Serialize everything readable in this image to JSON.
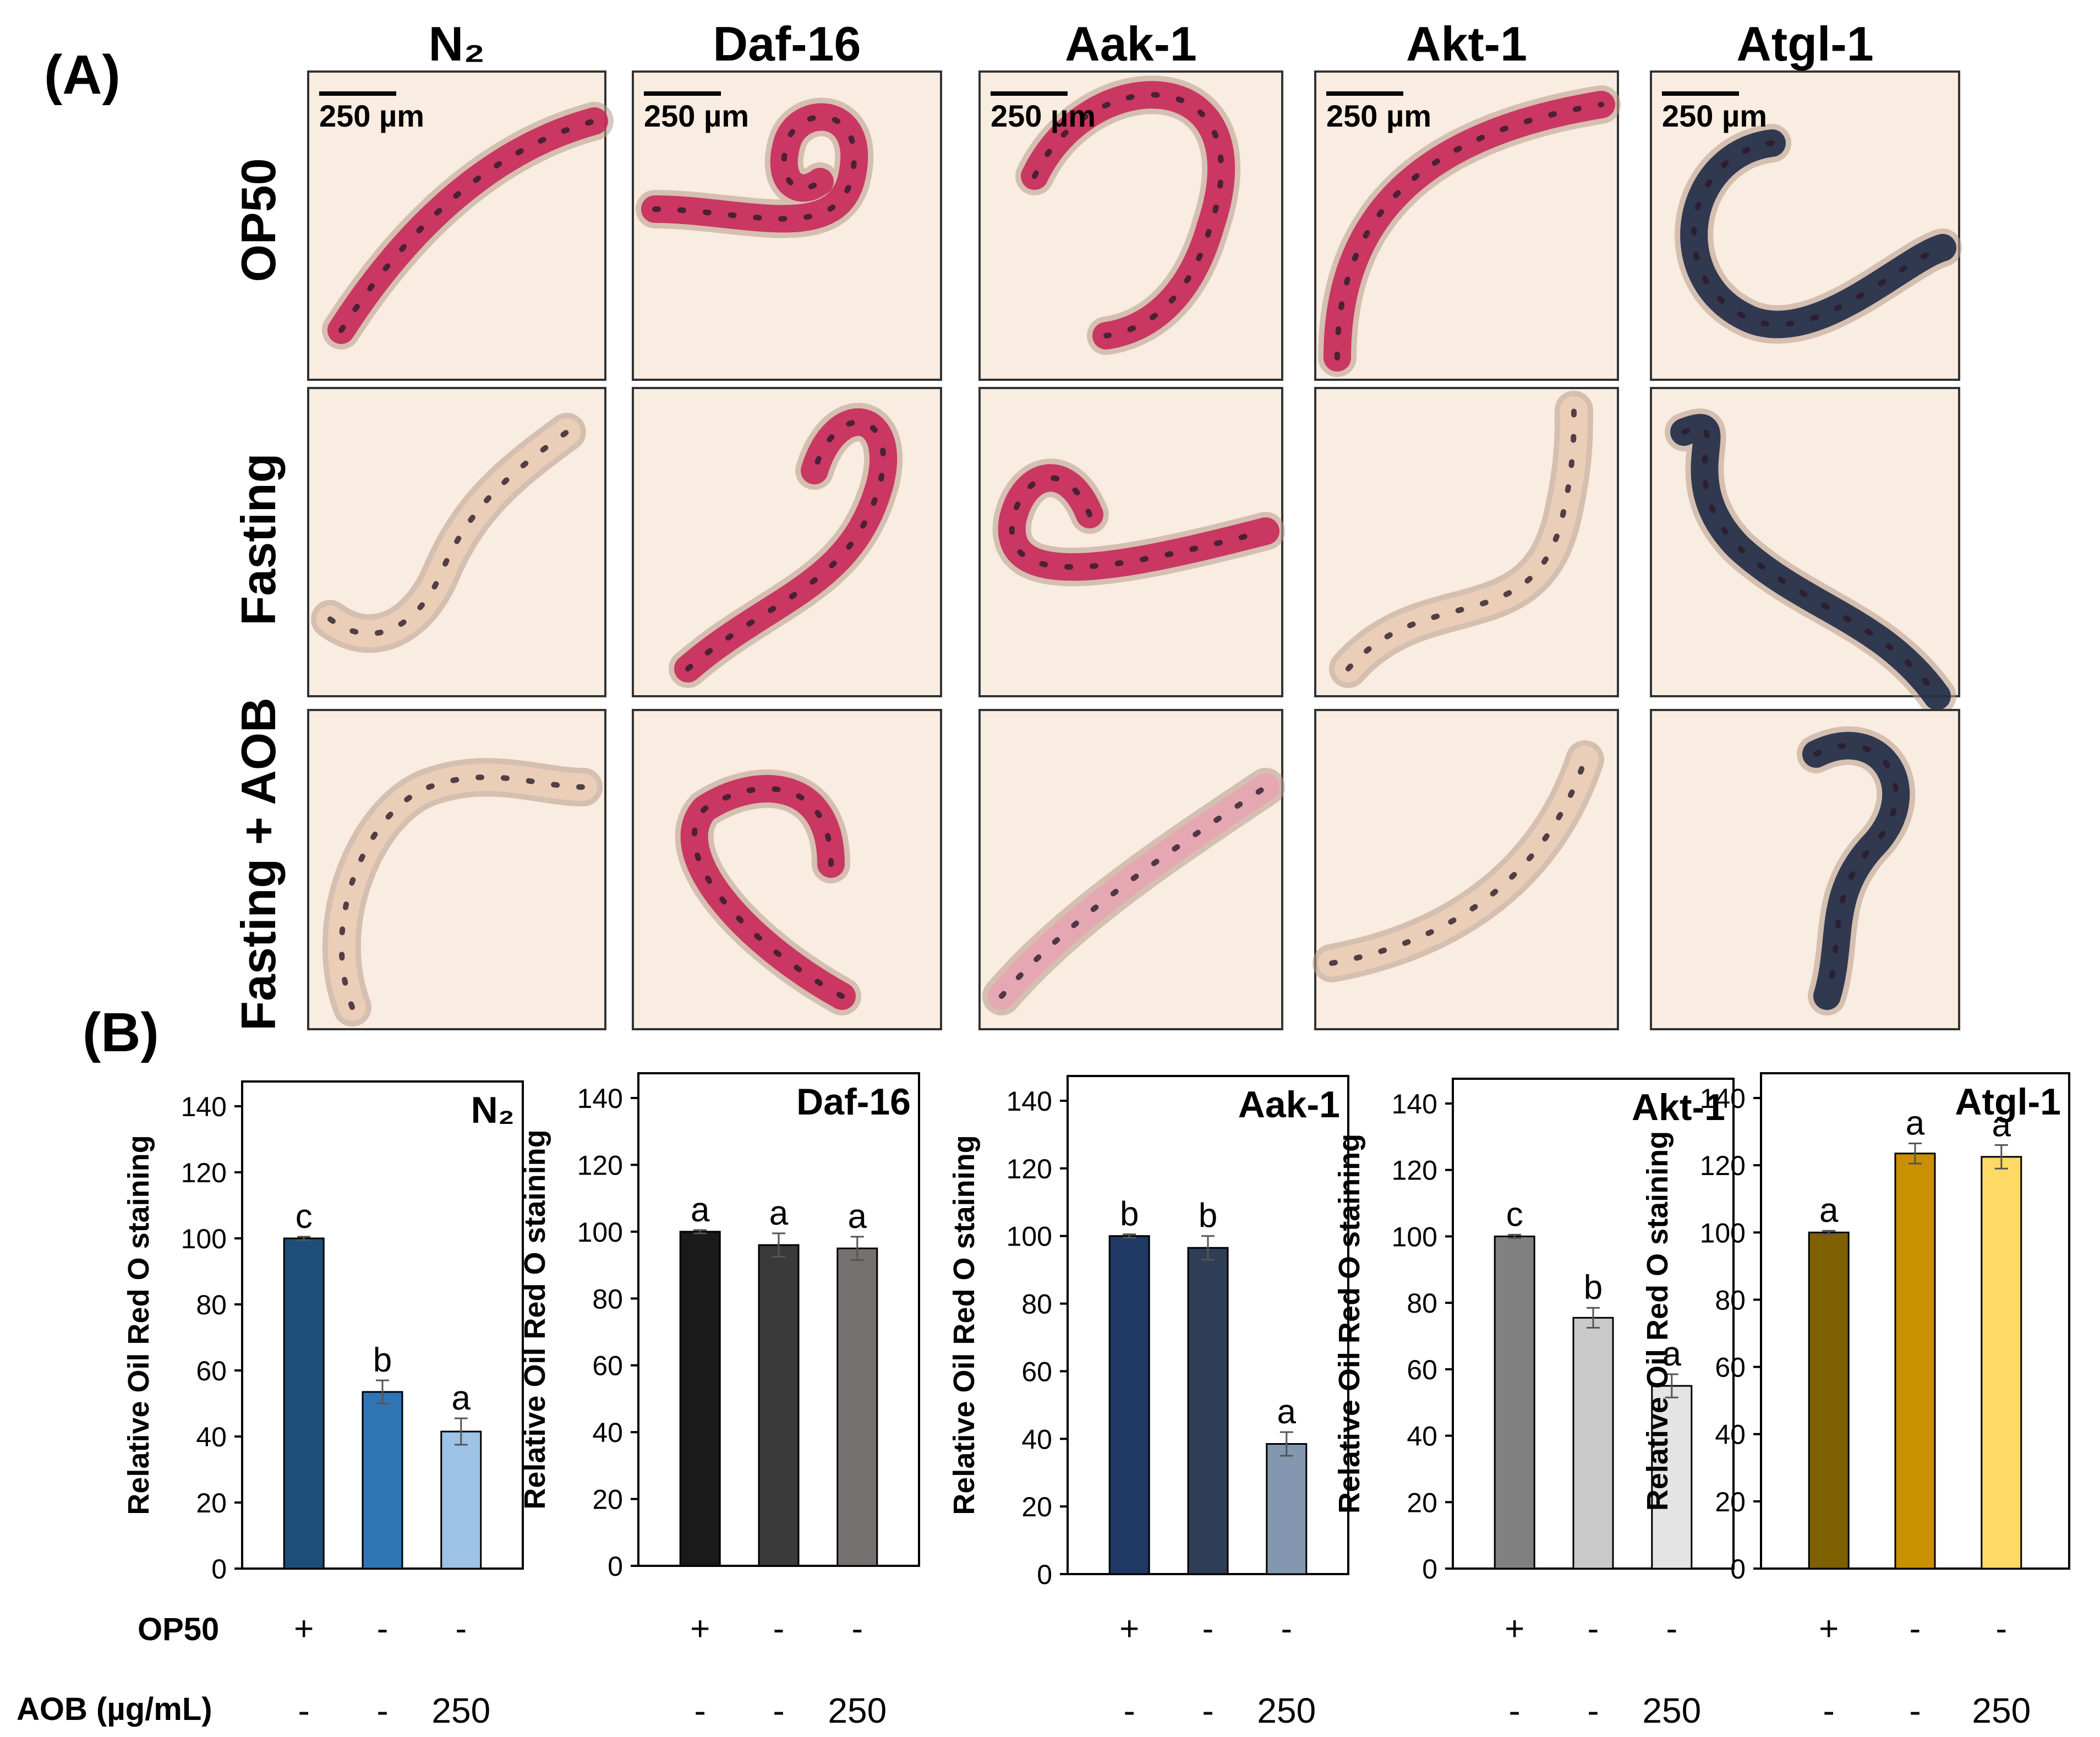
{
  "panel_a": {
    "label": "(A)",
    "strains": [
      "N₂",
      "Daf-16",
      "Aak-1",
      "Akt-1",
      "Atgl-1"
    ],
    "conditions": [
      "OP50",
      "Fasting",
      "Fasting + AOB"
    ],
    "scale_bar": "250 µm",
    "stain": {
      "red": "#c8285a",
      "dark": "#2a1a2a",
      "bg": "#f9ece0",
      "body": "#eccfb8",
      "blue_dark": "#1e2a45"
    }
  },
  "panel_b": {
    "label": "(B)",
    "ylabel": "Relative Oil Red O staining",
    "row_labels": {
      "op50": "OP50",
      "aob": "AOB (µg/mL)"
    },
    "op50_signs": [
      "+",
      "-",
      "-"
    ],
    "aob_values": [
      "-",
      "-",
      "250"
    ]
  },
  "chart_data": [
    {
      "type": "bar",
      "title": "N₂",
      "categories": [
        "OP50",
        "Fasting",
        "Fasting + AOB 250"
      ],
      "values": [
        100,
        53.5,
        41.5
      ],
      "errors": [
        0.5,
        3.5,
        4
      ],
      "letters": [
        "c",
        "b",
        "a"
      ],
      "colors": [
        "#1d4e79",
        "#2e75b6",
        "#9dc3e6"
      ],
      "ylim": [
        0,
        140
      ],
      "ticks": [
        0,
        20,
        40,
        60,
        80,
        100,
        120,
        140
      ]
    },
    {
      "type": "bar",
      "title": "Daf-16",
      "categories": [
        "OP50",
        "Fasting",
        "Fasting + AOB 250"
      ],
      "values": [
        100,
        96,
        95
      ],
      "errors": [
        0.5,
        3.5,
        3.5
      ],
      "letters": [
        "a",
        "a",
        "a"
      ],
      "colors": [
        "#1a1a1a",
        "#3a3a3a",
        "#767171"
      ],
      "ylim": [
        0,
        140
      ],
      "ticks": [
        0,
        20,
        40,
        60,
        80,
        100,
        120,
        140
      ]
    },
    {
      "type": "bar",
      "title": "Aak-1",
      "categories": [
        "OP50",
        "Fasting",
        "Fasting + AOB 250"
      ],
      "values": [
        100,
        96.5,
        38.5
      ],
      "errors": [
        0.5,
        3.5,
        3.5
      ],
      "letters": [
        "b",
        "b",
        "a"
      ],
      "colors": [
        "#1f3864",
        "#2f3e56",
        "#8497b0"
      ],
      "ylim": [
        0,
        140
      ],
      "ticks": [
        0,
        20,
        40,
        60,
        80,
        100,
        120,
        140
      ]
    },
    {
      "type": "bar",
      "title": "Akt-1",
      "categories": [
        "OP50",
        "Fasting",
        "Fasting + AOB 250"
      ],
      "values": [
        100,
        75.5,
        55
      ],
      "errors": [
        0.5,
        3,
        3.5
      ],
      "letters": [
        "c",
        "b",
        "a"
      ],
      "colors": [
        "#808080",
        "#c9c9c9",
        "#e4e4e4"
      ],
      "ylim": [
        0,
        140
      ],
      "ticks": [
        0,
        20,
        40,
        60,
        80,
        100,
        120,
        140
      ]
    },
    {
      "type": "bar",
      "title": "Atgl-1",
      "categories": [
        "OP50",
        "Fasting",
        "Fasting + AOB 250"
      ],
      "values": [
        100,
        123.5,
        122.5
      ],
      "errors": [
        0.5,
        3,
        3.5
      ],
      "letters": [
        "a",
        "a",
        "a"
      ],
      "colors": [
        "#7f6000",
        "#c99000",
        "#ffd966"
      ],
      "ylim": [
        0,
        140
      ],
      "ticks": [
        0,
        20,
        40,
        60,
        80,
        100,
        120,
        140
      ]
    }
  ]
}
